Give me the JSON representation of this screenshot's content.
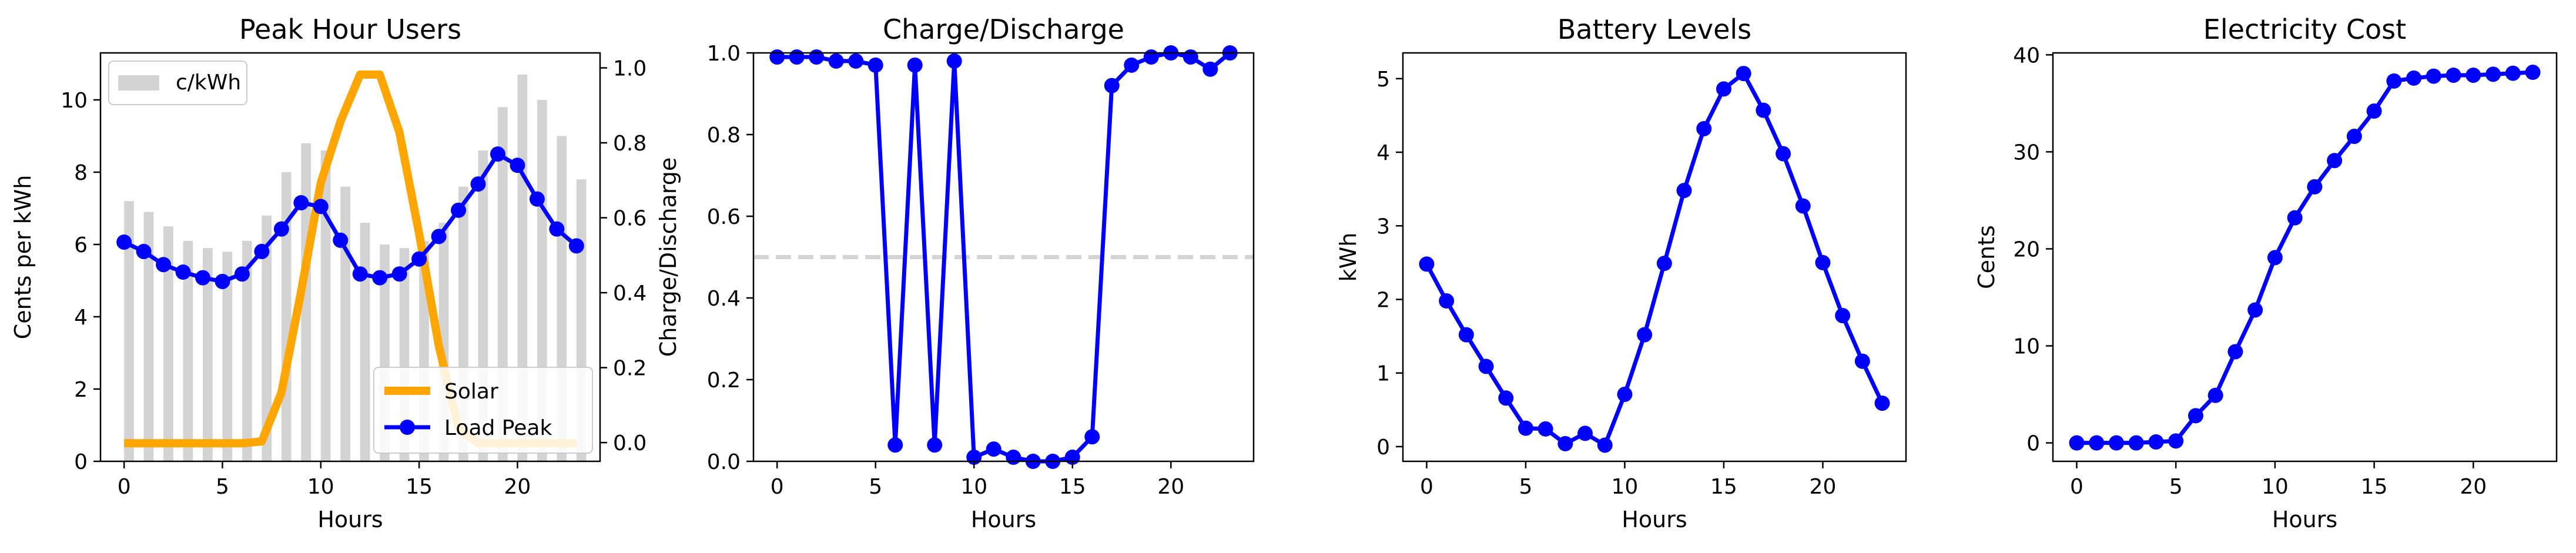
{
  "chart_data": [
    {
      "type": "bar+line",
      "title": "Peak Hour Users",
      "xlabel": "Hours",
      "ylabel": "Cents per kWh",
      "x": [
        0,
        1,
        2,
        3,
        4,
        5,
        6,
        7,
        8,
        9,
        10,
        11,
        12,
        13,
        14,
        15,
        16,
        17,
        18,
        19,
        20,
        21,
        22,
        23
      ],
      "xlim": [
        -1.2,
        24.2
      ],
      "xticks": [
        0,
        5,
        10,
        15,
        20
      ],
      "ylim": [
        0,
        11.3
      ],
      "yticks": [
        0,
        2,
        4,
        6,
        8,
        10
      ],
      "y2lim": [
        -0.05,
        1.04
      ],
      "y2ticks": [
        0.0,
        0.2,
        0.4,
        0.6,
        0.8,
        1.0
      ],
      "y2ticklabels": [
        "0.0",
        "0.2",
        "0.4",
        "0.6",
        "0.8",
        "1.0"
      ],
      "bars": {
        "name": "c/kWh",
        "color": "#d3d3d3",
        "values": [
          7.2,
          6.9,
          6.5,
          6.1,
          5.9,
          5.8,
          6.1,
          6.8,
          8.0,
          8.8,
          8.6,
          7.6,
          6.6,
          6.0,
          5.9,
          6.1,
          6.6,
          7.6,
          8.6,
          9.8,
          10.7,
          10.0,
          9.0,
          7.8
        ]
      },
      "series": [
        {
          "name": "Solar",
          "axis": "left",
          "color": "#ffa500",
          "values": [
            0.5,
            0.5,
            0.5,
            0.5,
            0.5,
            0.5,
            0.5,
            0.55,
            1.9,
            4.7,
            7.7,
            9.4,
            10.7,
            10.7,
            9.1,
            6.3,
            3.2,
            0.9,
            0.5,
            0.5,
            0.5,
            0.5,
            0.5,
            0.5
          ]
        },
        {
          "name": "Load Peak",
          "axis": "right",
          "color": "#0000ff",
          "marker": "circle",
          "values": [
            0.535,
            0.51,
            0.475,
            0.455,
            0.44,
            0.43,
            0.45,
            0.51,
            0.57,
            0.64,
            0.63,
            0.54,
            0.45,
            0.44,
            0.45,
            0.49,
            0.55,
            0.62,
            0.69,
            0.77,
            0.74,
            0.65,
            0.57,
            0.525
          ]
        }
      ],
      "legends": [
        {
          "position": "upper-left",
          "items": [
            "c/kWh"
          ]
        },
        {
          "position": "lower-right",
          "items": [
            "Solar",
            "Load Peak"
          ]
        }
      ]
    },
    {
      "type": "line",
      "title": "Charge/Discharge",
      "xlabel": "Hours",
      "ylabel": "Charge/Discharge",
      "x": [
        0,
        1,
        2,
        3,
        4,
        5,
        6,
        7,
        8,
        9,
        10,
        11,
        12,
        13,
        14,
        15,
        16,
        17,
        18,
        19,
        20,
        21,
        22,
        23
      ],
      "xlim": [
        -1.2,
        24.2
      ],
      "xticks": [
        0,
        5,
        10,
        15,
        20
      ],
      "ylim": [
        0,
        1.0
      ],
      "yticks": [
        0.0,
        0.2,
        0.4,
        0.6,
        0.8,
        1.0
      ],
      "yticklabels": [
        "0.0",
        "0.2",
        "0.4",
        "0.6",
        "0.8",
        "1.0"
      ],
      "hline": {
        "y": 0.5,
        "color": "#d3d3d3",
        "style": "dashed"
      },
      "series": [
        {
          "color": "#0000ff",
          "marker": "circle",
          "values": [
            0.99,
            0.99,
            0.99,
            0.98,
            0.98,
            0.97,
            0.04,
            0.97,
            0.04,
            0.98,
            0.01,
            0.03,
            0.01,
            0.0,
            0.0,
            0.01,
            0.06,
            0.92,
            0.97,
            0.99,
            1.0,
            0.99,
            0.96,
            1.0
          ]
        }
      ]
    },
    {
      "type": "line",
      "title": "Battery Levels",
      "xlabel": "Hours",
      "ylabel": "kWh",
      "x": [
        0,
        1,
        2,
        3,
        4,
        5,
        6,
        7,
        8,
        9,
        10,
        11,
        12,
        13,
        14,
        15,
        16,
        17,
        18,
        19,
        20,
        21,
        22,
        23
      ],
      "xlim": [
        -1.2,
        24.2
      ],
      "xticks": [
        0,
        5,
        10,
        15,
        20
      ],
      "ylim": [
        -0.2,
        5.35
      ],
      "yticks": [
        0,
        1,
        2,
        3,
        4,
        5
      ],
      "series": [
        {
          "color": "#0000ff",
          "marker": "circle",
          "values": [
            2.48,
            1.98,
            1.52,
            1.09,
            0.66,
            0.25,
            0.24,
            0.04,
            0.18,
            0.02,
            0.71,
            1.52,
            2.49,
            3.48,
            4.32,
            4.86,
            5.07,
            4.57,
            3.98,
            3.27,
            2.5,
            1.78,
            1.16,
            0.59
          ]
        }
      ]
    },
    {
      "type": "line",
      "title": "Electricity Cost",
      "xlabel": "Hours",
      "ylabel": "Cents",
      "x": [
        0,
        1,
        2,
        3,
        4,
        5,
        6,
        7,
        8,
        9,
        10,
        11,
        12,
        13,
        14,
        15,
        16,
        17,
        18,
        19,
        20,
        21,
        22,
        23
      ],
      "xlim": [
        -1.2,
        24.2
      ],
      "xticks": [
        0,
        5,
        10,
        15,
        20
      ],
      "ylim": [
        -1.9,
        40.2
      ],
      "yticks": [
        0,
        10,
        20,
        30,
        40
      ],
      "series": [
        {
          "color": "#0000ff",
          "marker": "circle",
          "values": [
            0.0,
            0.0,
            0.0,
            0.0,
            0.1,
            0.2,
            2.8,
            4.9,
            9.4,
            13.7,
            19.1,
            23.2,
            26.4,
            29.1,
            31.6,
            34.2,
            37.3,
            37.6,
            37.8,
            37.9,
            37.9,
            38.0,
            38.1,
            38.2
          ]
        }
      ]
    }
  ]
}
